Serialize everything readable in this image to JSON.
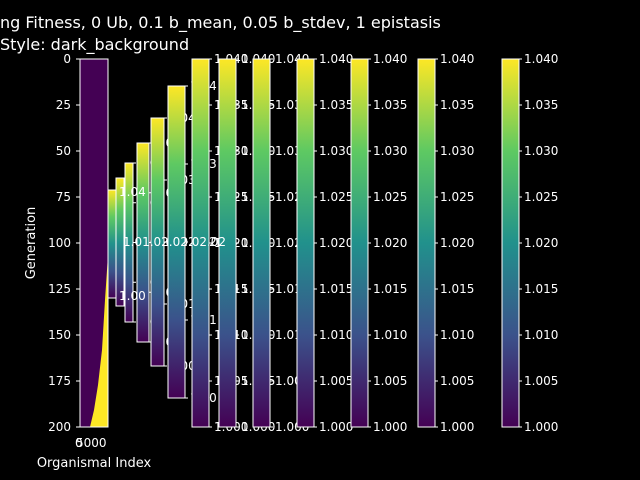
{
  "chart_data": {
    "type": "heatmap",
    "title_line1": "ng Fitness, 0 Ub, 0.1 b_mean, 0.05 b_stdev, 1 epistasis",
    "title_line2": "Style: dark_background",
    "xlabel": "Organismal Index",
    "ylabel": "Generation",
    "x_ticks": [
      "0",
      "5000"
    ],
    "y_ticks": [
      "0",
      "25",
      "50",
      "75",
      "100",
      "125",
      "150",
      "175",
      "200"
    ],
    "ylim": [
      0,
      200
    ],
    "colormap": "viridis",
    "colormap_stops": [
      "#440154",
      "#3b528b",
      "#21918c",
      "#5ec962",
      "#fde725"
    ],
    "heatmap_description": "fitness boundary rising from generation 200 to about 95",
    "colorbar": {
      "range": [
        1.0,
        1.04
      ],
      "full_ticks": [
        "1.000",
        "1.005",
        "1.010",
        "1.015",
        "1.020",
        "1.025",
        "1.030",
        "1.035",
        "1.040"
      ],
      "short_ticks": [
        "1.00",
        "1.01",
        "1.02",
        "1.03",
        "1.04"
      ],
      "overlap_label": "1.01.02.02.02.02",
      "edge_labels": {
        "top": "1.04",
        "bottom": "1.00"
      }
    }
  }
}
